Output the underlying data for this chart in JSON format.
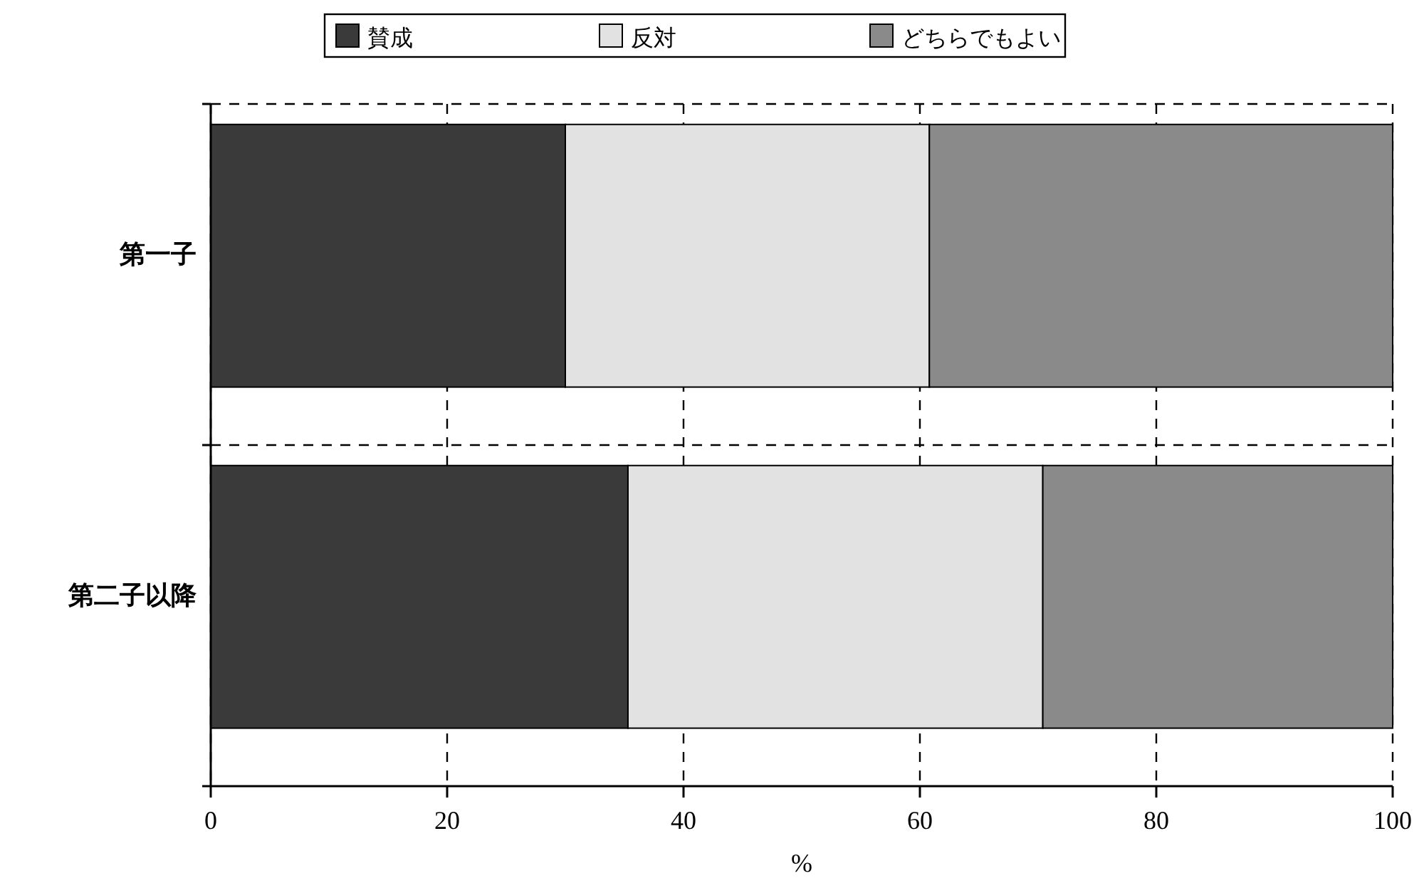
{
  "chart_data": {
    "type": "bar",
    "orientation": "horizontal",
    "stacked": true,
    "categories": [
      "第一子",
      "第二子以降"
    ],
    "series": [
      {
        "name": "賛成",
        "color": "#3a3a3a",
        "values": [
          30.0,
          35.3
        ]
      },
      {
        "name": "反対",
        "color": "#e2e2e2",
        "values": [
          30.8,
          35.1
        ]
      },
      {
        "name": "どちらでもよい",
        "color": "#8a8a8a",
        "values": [
          39.2,
          29.6
        ]
      }
    ],
    "xlabel": "%",
    "xlim": [
      0,
      100
    ],
    "xticks": [
      0,
      20,
      40,
      60,
      80,
      100
    ],
    "grid": "x",
    "legend": "top"
  }
}
